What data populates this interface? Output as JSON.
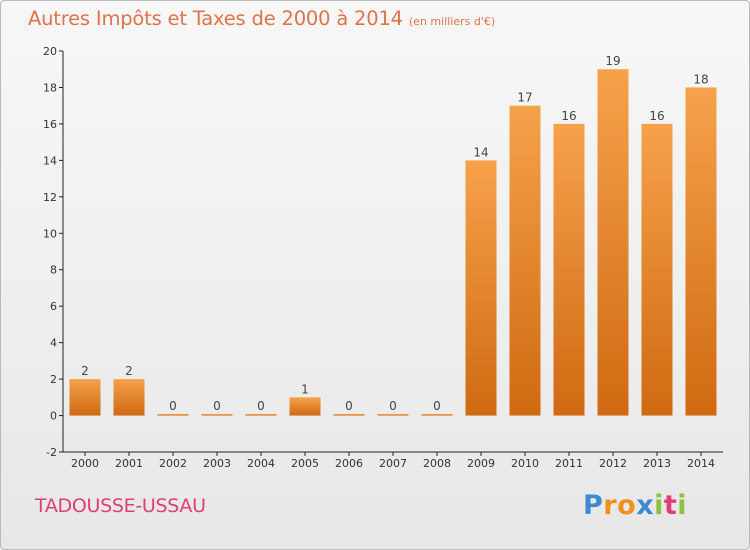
{
  "chart_data": {
    "type": "bar",
    "title": "Autres Impôts et Taxes de 2000 à 2014",
    "subtitle": "(en milliers d'€)",
    "categories": [
      "2000",
      "2001",
      "2002",
      "2003",
      "2004",
      "2005",
      "2006",
      "2007",
      "2008",
      "2009",
      "2010",
      "2011",
      "2012",
      "2013",
      "2014"
    ],
    "values": [
      2,
      2,
      0,
      0,
      0,
      1,
      0,
      0,
      0,
      14,
      17,
      16,
      19,
      16,
      18
    ],
    "data_labels": [
      "2",
      "2",
      "0",
      "0",
      "0",
      "1",
      "0",
      "0",
      "0",
      "14",
      "17",
      "16",
      "19",
      "16",
      "18"
    ],
    "ylim": [
      -2,
      20
    ],
    "yticks": [
      "-2",
      "0",
      "2",
      "4",
      "6",
      "8",
      "10",
      "12",
      "14",
      "16",
      "18",
      "20"
    ],
    "xlabel": "",
    "ylabel": "",
    "grid": false,
    "legend": "none",
    "colors": {
      "bar_light": "#f6a24b",
      "bar_dark": "#cf6a12",
      "title": "#e0734a",
      "town": "#df3f74"
    }
  },
  "footer": {
    "town": "TADOUSSE-USSAU"
  },
  "logo": {
    "letters": [
      "P",
      "r",
      "o",
      "x",
      "i",
      "t",
      "i"
    ],
    "colors": [
      "#3d8ad1",
      "#f0901e",
      "#f0901e",
      "#3d8ad1",
      "#8cc43c",
      "#df3f74",
      "#8cc43c"
    ]
  }
}
